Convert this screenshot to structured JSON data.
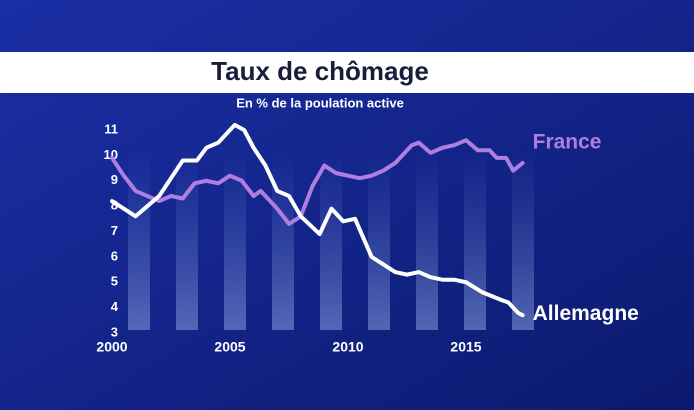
{
  "chart_data": {
    "type": "line",
    "title": "Taux de chômage",
    "subtitle": "En % de la poulation active",
    "xlim": [
      2000,
      2017.5
    ],
    "xticks": [
      2000,
      2005,
      2010,
      2015
    ],
    "ylim": [
      3,
      11
    ],
    "yticks": [
      3,
      4,
      5,
      6,
      7,
      8,
      9,
      10,
      11
    ],
    "series": [
      {
        "name": "France",
        "color": "#b07ee0",
        "x": [
          2000,
          2000.5,
          2001,
          2002,
          2002.5,
          2003,
          2003.5,
          2004,
          2004.5,
          2005,
          2005.5,
          2006,
          2006.3,
          2007,
          2007.5,
          2008,
          2008.5,
          2009,
          2009.5,
          2010,
          2010.5,
          2011,
          2011.5,
          2012,
          2012.7,
          2013,
          2013.5,
          2014,
          2014.5,
          2015,
          2015.5,
          2016,
          2016.3,
          2016.7,
          2017,
          2017.4
        ],
        "values": [
          9.9,
          9.2,
          8.6,
          8.2,
          8.4,
          8.3,
          8.9,
          9.0,
          8.9,
          9.2,
          9.0,
          8.4,
          8.6,
          7.9,
          7.3,
          7.6,
          8.8,
          9.6,
          9.3,
          9.2,
          9.1,
          9.2,
          9.4,
          9.7,
          10.4,
          10.5,
          10.1,
          10.3,
          10.4,
          10.6,
          10.2,
          10.2,
          9.9,
          9.9,
          9.4,
          9.7
        ]
      },
      {
        "name": "Allemagne",
        "color": "#ffffff",
        "x": [
          2000,
          2001,
          2002,
          2003,
          2003.6,
          2004,
          2004.5,
          2005.2,
          2005.6,
          2006,
          2006.5,
          2007,
          2007.5,
          2008,
          2008.8,
          2009.3,
          2009.8,
          2010.3,
          2011,
          2011.5,
          2012,
          2012.5,
          2013,
          2013.5,
          2014,
          2014.5,
          2015,
          2015.7,
          2016.5,
          2016.8,
          2017.2,
          2017.4
        ],
        "values": [
          8.2,
          7.6,
          8.4,
          9.8,
          9.8,
          10.3,
          10.5,
          11.2,
          11.0,
          10.3,
          9.6,
          8.6,
          8.4,
          7.6,
          6.9,
          7.9,
          7.4,
          7.5,
          6.0,
          5.7,
          5.4,
          5.3,
          5.4,
          5.2,
          5.1,
          5.1,
          5.0,
          4.6,
          4.3,
          4.2,
          3.8,
          3.7
        ]
      }
    ]
  }
}
